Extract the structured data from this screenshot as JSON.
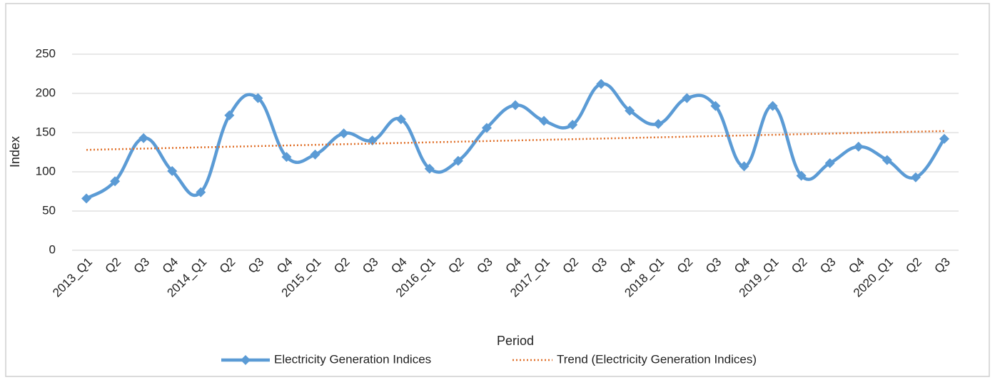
{
  "chart_data": {
    "type": "line",
    "x_label": "Period",
    "y_label": "Index",
    "categories": [
      "2013_Q1",
      "Q2",
      "Q3",
      "Q4",
      "2014_Q1",
      "Q2",
      "Q3",
      "Q4",
      "2015_Q1",
      "Q2",
      "Q3",
      "Q4",
      "2016_Q1",
      "Q2",
      "Q3",
      "Q4",
      "2017_Q1",
      "Q2",
      "Q3",
      "Q4",
      "2018_Q1",
      "Q2",
      "Q3",
      "Q4",
      "2019_Q1",
      "Q2",
      "Q3",
      "Q4",
      "2020_Q1",
      "Q2",
      "Q3"
    ],
    "series": [
      {
        "name": "Electricity Generation Indices",
        "color": "#5b9bd5",
        "style": "smooth-marker",
        "values": [
          66,
          88,
          143,
          101,
          74,
          172,
          194,
          119,
          122,
          149,
          140,
          167,
          104,
          114,
          156,
          185,
          165,
          160,
          212,
          178,
          161,
          194,
          184,
          107,
          184,
          95,
          111,
          132,
          115,
          93,
          142
        ]
      },
      {
        "name": "Trend (Electricity Generation Indices)",
        "color": "#e0702a",
        "style": "dotted",
        "values": [
          128,
          128.8,
          129.6,
          130.4,
          131.2,
          132,
          132.8,
          133.6,
          134.4,
          135.2,
          136,
          136.8,
          137.6,
          138.4,
          139.2,
          140,
          140.8,
          141.6,
          142.4,
          143.2,
          144,
          144.8,
          145.6,
          146.4,
          147.2,
          148,
          148.8,
          149.6,
          150.4,
          151.2,
          152
        ]
      }
    ],
    "ylim": [
      0,
      250
    ],
    "yticks": [
      0,
      50,
      100,
      150,
      200,
      250
    ],
    "grid": true,
    "legend": "bottom"
  }
}
